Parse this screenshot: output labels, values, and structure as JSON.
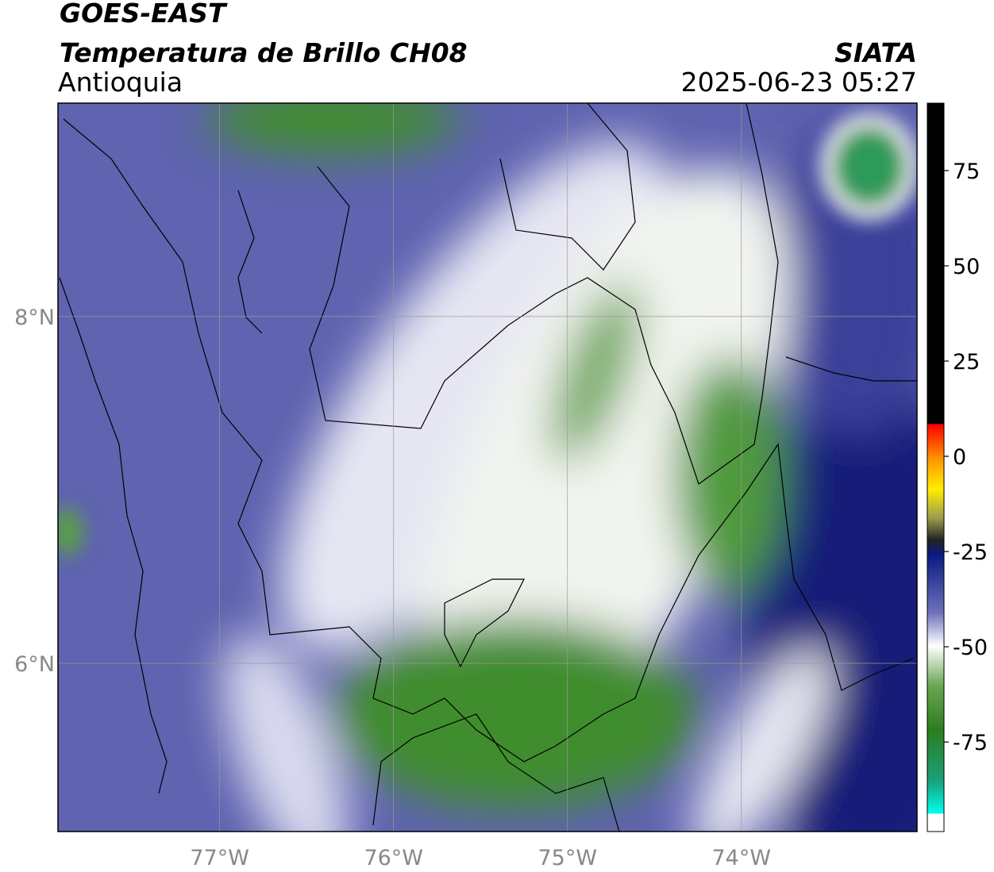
{
  "header": {
    "title": "GOES-EAST",
    "subtitle": "Temperatura de Brillo CH08",
    "source": "SIATA",
    "region": "Antioquia",
    "timestamp": "2025-06-23 05:27"
  },
  "map": {
    "xlim": [
      -77.93,
      -72.99
    ],
    "ylim": [
      5.03,
      9.23
    ],
    "xticks": [
      {
        "value": -77,
        "label": "77°W"
      },
      {
        "value": -76,
        "label": "76°W"
      },
      {
        "value": -75,
        "label": "75°W"
      },
      {
        "value": -74,
        "label": "74°W"
      }
    ],
    "yticks": [
      {
        "value": 8,
        "label": "8°N"
      },
      {
        "value": 6,
        "label": "6°N"
      }
    ],
    "grid": true
  },
  "colorbar": {
    "lim": [
      -98.5,
      92.7
    ],
    "ticks": [
      75,
      50,
      25,
      0,
      -25,
      -50,
      -75
    ]
  }
}
